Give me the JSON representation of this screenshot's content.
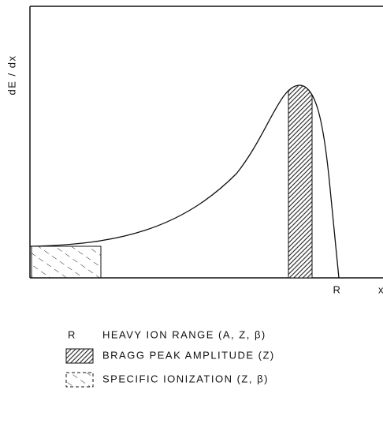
{
  "diagram": {
    "y_axis_label": "dE / dx",
    "x_axis_label": "x",
    "range_marker": "R",
    "legend": [
      {
        "symbol": "R",
        "label": "HEAVY ION RANGE (A, Z, β)"
      },
      {
        "label": "BRAGG PEAK AMPLITUDE (Z)"
      },
      {
        "label": "SPECIFIC IONIZATION (Z, β)"
      }
    ]
  }
}
